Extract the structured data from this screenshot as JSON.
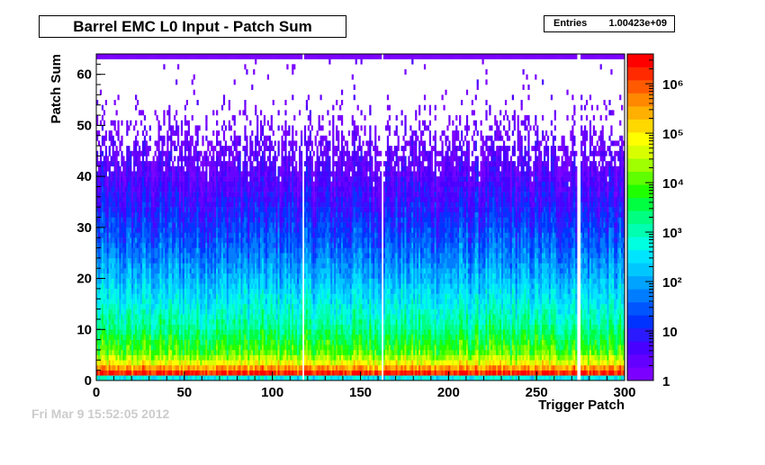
{
  "chart_data": {
    "type": "heatmap",
    "title": "Barrel EMC L0 Input - Patch Sum",
    "stats": {
      "label": "Entries",
      "value": "1.00423e+09"
    },
    "xlabel": "Trigger Patch",
    "ylabel": "Patch Sum",
    "xlim": [
      0,
      300
    ],
    "ylim": [
      0,
      64
    ],
    "x_ticks": [
      "0",
      "50",
      "100",
      "150",
      "200",
      "250",
      "300"
    ],
    "y_ticks": [
      "0",
      "10",
      "20",
      "30",
      "40",
      "50",
      "60"
    ],
    "z_scale": "log",
    "zlim": [
      1,
      4000000
    ],
    "z_ticks": [
      {
        "value": 1,
        "label": "1"
      },
      {
        "value": 10,
        "label": "10"
      },
      {
        "value": 100,
        "label": "10²"
      },
      {
        "value": 1000,
        "label": "10³"
      },
      {
        "value": 10000,
        "label": "10⁴"
      },
      {
        "value": 100000,
        "label": "10⁵"
      },
      {
        "value": 1000000,
        "label": "10⁶"
      }
    ],
    "empty_columns": [
      117,
      162,
      273,
      274
    ],
    "profile": [
      {
        "y": 0,
        "z": 400
      },
      {
        "y": 1,
        "z": 2000000
      },
      {
        "y": 3,
        "z": 60000
      },
      {
        "y": 5,
        "z": 10000
      },
      {
        "y": 10,
        "z": 1500
      },
      {
        "y": 15,
        "z": 400
      },
      {
        "y": 20,
        "z": 120
      },
      {
        "y": 25,
        "z": 40
      },
      {
        "y": 30,
        "z": 15
      },
      {
        "y": 35,
        "z": 6
      },
      {
        "y": 40,
        "z": 3
      },
      {
        "y": 45,
        "z": 2
      },
      {
        "y": 50,
        "z": 1
      },
      {
        "y": 63,
        "z": 1
      }
    ]
  },
  "footer_text": "Fri Mar  9 15:52:05 2012"
}
